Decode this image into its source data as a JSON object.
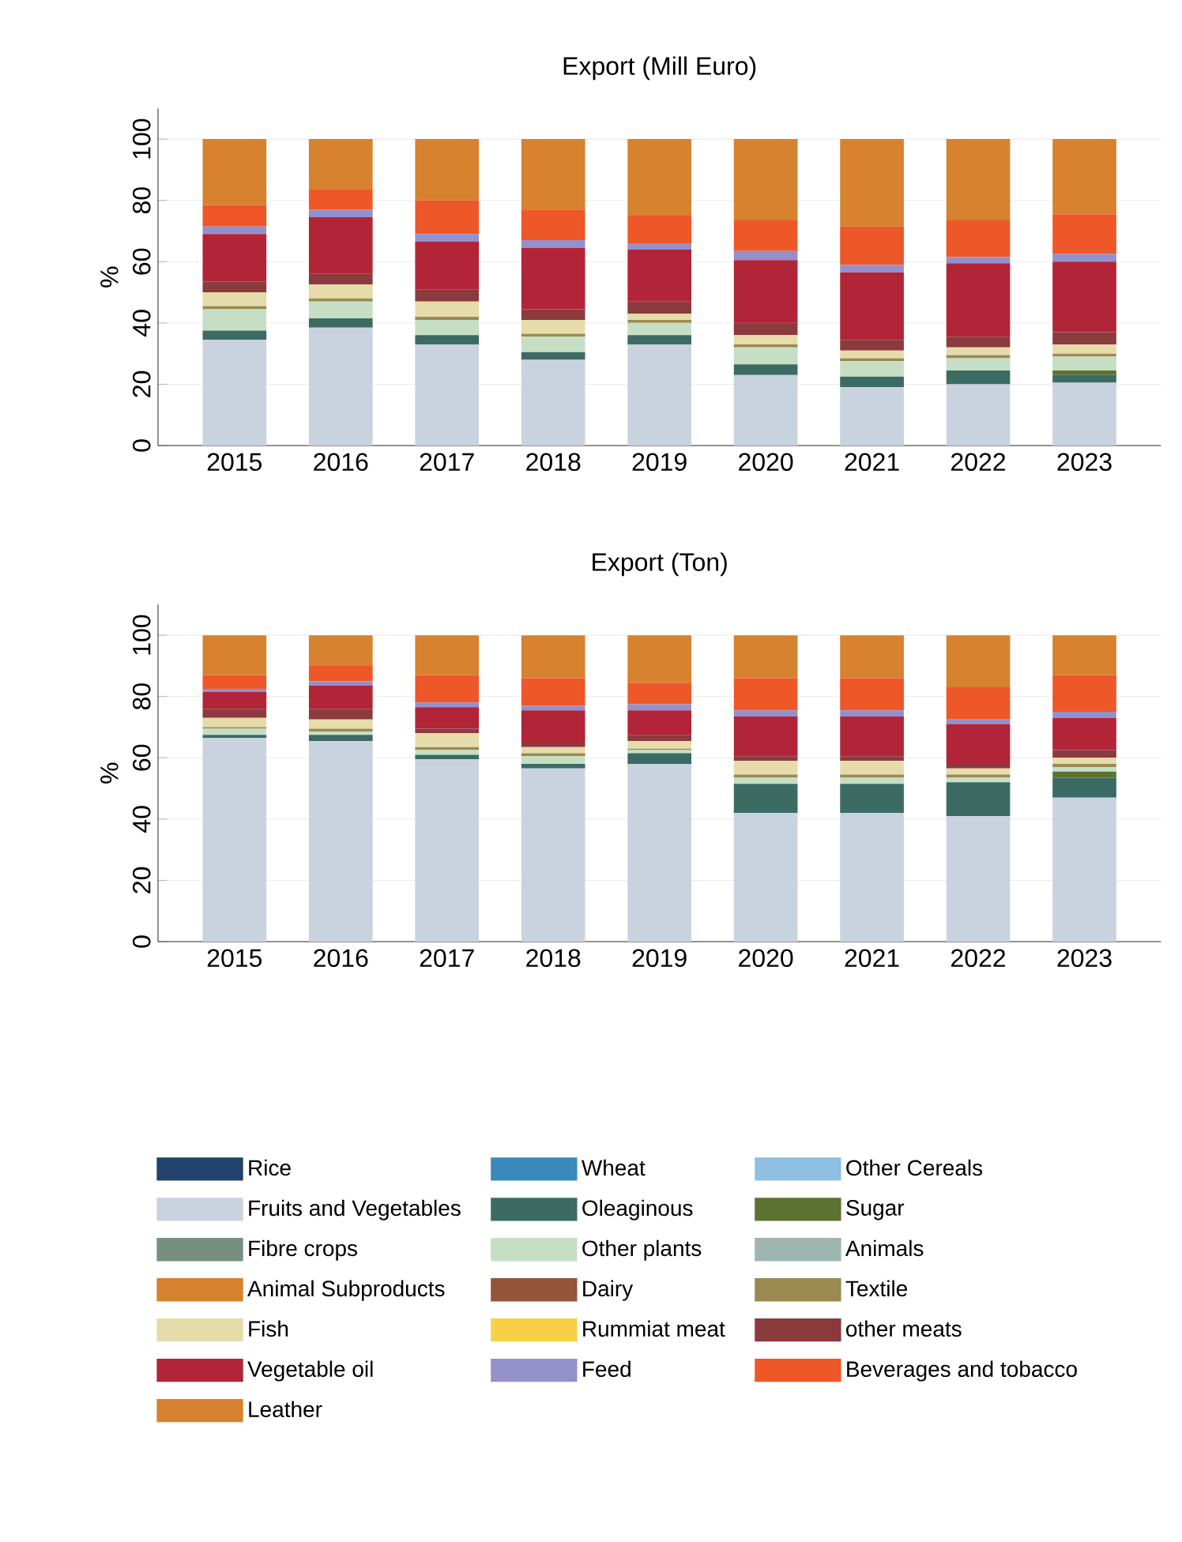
{
  "chart_data": [
    {
      "type": "bar",
      "stacked": true,
      "title": "Export (Mill Euro)",
      "ylabel": "%",
      "categories": [
        "2015",
        "2016",
        "2017",
        "2018",
        "2019",
        "2020",
        "2021",
        "2022",
        "2023"
      ],
      "ylim": [
        0,
        110
      ],
      "yticks": [
        0,
        20,
        40,
        60,
        80,
        100
      ],
      "grid": "y",
      "legend": false,
      "series": [
        {
          "color": "#22436b",
          "values": [
            0,
            0,
            0,
            0,
            0,
            0,
            0,
            0,
            0
          ]
        },
        {
          "color": "#3a89bd",
          "values": [
            0,
            0,
            0,
            0,
            0,
            0,
            0,
            0,
            0
          ]
        },
        {
          "color": "#8fbfe3",
          "values": [
            0,
            0,
            0,
            0,
            0,
            0,
            0,
            0,
            0
          ]
        },
        {
          "color": "#c9d3df",
          "values": [
            34.5,
            38.5,
            33,
            28,
            33,
            23,
            19,
            20,
            20.5
          ]
        },
        {
          "color": "#3b6b63",
          "values": [
            3,
            3,
            3,
            2.5,
            3,
            3.5,
            3.5,
            4.5,
            2.5
          ]
        },
        {
          "color": "#5b7233",
          "values": [
            0,
            0,
            0,
            0,
            0,
            0,
            0,
            0,
            1.5
          ]
        },
        {
          "color": "#758f80",
          "values": [
            0,
            0,
            0,
            0,
            0,
            0,
            0,
            0,
            0
          ]
        },
        {
          "color": "#c6dfc4",
          "values": [
            7,
            5.5,
            5,
            5,
            4,
            5.5,
            5,
            4,
            4.5
          ]
        },
        {
          "color": "#9db5ae",
          "values": [
            0,
            0,
            0,
            0,
            0,
            0,
            0,
            0,
            0
          ]
        },
        {
          "color": "#d6822f",
          "values": [
            0,
            0,
            0,
            0,
            0,
            0,
            0,
            0,
            0
          ]
        },
        {
          "color": "#94543a",
          "values": [
            0,
            0,
            0,
            0,
            0,
            0,
            0,
            0,
            0
          ]
        },
        {
          "color": "#9a8a50",
          "values": [
            1,
            1,
            1,
            1,
            1,
            1,
            1,
            1,
            1
          ]
        },
        {
          "color": "#e6dcab",
          "values": [
            4.5,
            4.5,
            5,
            4.5,
            2,
            3,
            2.5,
            2.5,
            3
          ]
        },
        {
          "color": "#f7d046",
          "values": [
            0,
            0,
            0,
            0,
            0,
            0,
            0,
            0,
            0
          ]
        },
        {
          "color": "#8b3a3e",
          "values": [
            3.5,
            3.5,
            4,
            3.5,
            4,
            4,
            3.5,
            3.5,
            4
          ]
        },
        {
          "color": "#b22437",
          "values": [
            15.5,
            18.5,
            15.5,
            20,
            17,
            20.5,
            22,
            24,
            23
          ]
        },
        {
          "color": "#9390cc",
          "values": [
            2.5,
            2.5,
            2.5,
            2.5,
            2,
            3,
            2.5,
            2,
            2.5
          ]
        },
        {
          "color": "#ee5728",
          "values": [
            7,
            6.5,
            11,
            10,
            9,
            10,
            12.5,
            12,
            13
          ]
        },
        {
          "color": "#d6822f",
          "values": [
            21.5,
            16.5,
            20,
            23,
            25,
            26.5,
            28.5,
            26.5,
            24.5
          ]
        }
      ]
    },
    {
      "type": "bar",
      "stacked": true,
      "title": "Export (Ton)",
      "ylabel": "%",
      "categories": [
        "2015",
        "2016",
        "2017",
        "2018",
        "2019",
        "2020",
        "2021",
        "2022",
        "2023"
      ],
      "ylim": [
        0,
        110
      ],
      "yticks": [
        0,
        20,
        40,
        60,
        80,
        100
      ],
      "grid": "y",
      "legend": "bottom",
      "series": [
        {
          "name": "Rice",
          "color": "#22436b",
          "values": [
            0,
            0,
            0,
            0,
            0,
            0,
            0,
            0,
            0
          ]
        },
        {
          "name": "Wheat",
          "color": "#3a89bd",
          "values": [
            0,
            0,
            0,
            0,
            0,
            0,
            0,
            0,
            0
          ]
        },
        {
          "name": "Other Cereals",
          "color": "#8fbfe3",
          "values": [
            0,
            0,
            0,
            0,
            0,
            0,
            0,
            0,
            0
          ]
        },
        {
          "name": "Fruits and Vegetables",
          "color": "#c9d3df",
          "values": [
            66.5,
            65.5,
            59.5,
            56.5,
            58,
            42,
            42,
            41,
            47
          ]
        },
        {
          "name": "Oleaginous",
          "color": "#3b6b63",
          "values": [
            1,
            2,
            1.5,
            1.5,
            3.5,
            9.5,
            9.5,
            11,
            6.5
          ]
        },
        {
          "name": "Sugar",
          "color": "#5b7233",
          "values": [
            0,
            0,
            0,
            0,
            0,
            0,
            0,
            0,
            2
          ]
        },
        {
          "name": "Fibre crops",
          "color": "#758f80",
          "values": [
            0,
            0,
            0,
            0,
            0,
            0,
            0,
            0,
            0
          ]
        },
        {
          "name": "Other plants",
          "color": "#c6dfc4",
          "values": [
            2,
            1,
            1.5,
            2.5,
            1,
            2,
            2,
            1.5,
            1.5
          ]
        },
        {
          "name": "Animals",
          "color": "#9db5ae",
          "values": [
            0,
            0,
            0,
            0,
            0,
            0,
            0,
            0,
            0
          ]
        },
        {
          "name": "Animal Subproducts",
          "color": "#d6822f",
          "values": [
            0,
            0,
            0,
            0,
            0,
            0,
            0,
            0,
            0
          ]
        },
        {
          "name": "Dairy",
          "color": "#94543a",
          "values": [
            0,
            0,
            0,
            0,
            0,
            0,
            0,
            0,
            0
          ]
        },
        {
          "name": "Textile",
          "color": "#9a8a50",
          "values": [
            0.5,
            1,
            1,
            1,
            0.5,
            1,
            1,
            1,
            1
          ]
        },
        {
          "name": "Fish",
          "color": "#e6dcab",
          "values": [
            3,
            3,
            4.5,
            2,
            2.5,
            4.5,
            4.5,
            2,
            2
          ]
        },
        {
          "name": "Rummiat meat",
          "color": "#f7d046",
          "values": [
            0,
            0,
            0,
            0,
            0,
            0,
            0,
            0,
            0
          ]
        },
        {
          "name": "other meats",
          "color": "#8b3a3e",
          "values": [
            3,
            3.5,
            1.5,
            1.5,
            2,
            1.5,
            1.5,
            1.5,
            2.5
          ]
        },
        {
          "name": "Vegetable oil",
          "color": "#b22437",
          "values": [
            5.5,
            7.5,
            7,
            10.5,
            8,
            13,
            13,
            13,
            10.5
          ]
        },
        {
          "name": "Feed",
          "color": "#9390cc",
          "values": [
            1,
            1.5,
            1.5,
            1.5,
            2,
            2,
            2,
            1.5,
            2
          ]
        },
        {
          "name": "Beverages and tobacco",
          "color": "#ee5728",
          "values": [
            4.5,
            5,
            9,
            9,
            7,
            10.5,
            10.5,
            10.5,
            12
          ]
        },
        {
          "name": "Leather",
          "color": "#d6822f",
          "values": [
            13,
            10,
            13,
            14,
            15.5,
            14,
            14,
            17,
            13
          ]
        }
      ]
    }
  ]
}
